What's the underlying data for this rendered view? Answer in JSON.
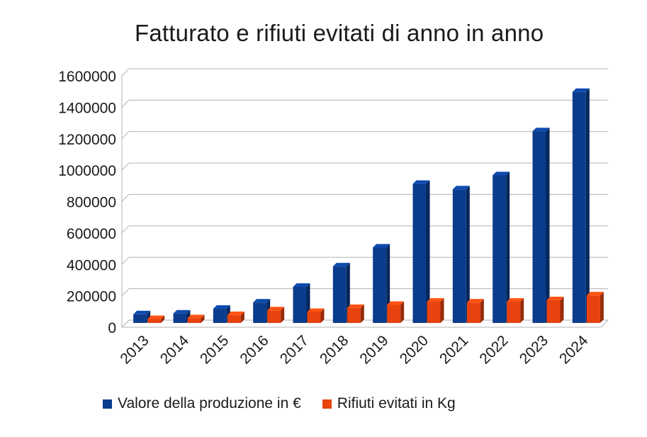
{
  "chart_data": {
    "type": "bar",
    "title": "Fatturato e rifiuti evitati di anno in anno",
    "categories": [
      "2013",
      "2014",
      "2015",
      "2016",
      "2017",
      "2018",
      "2019",
      "2020",
      "2021",
      "2022",
      "2023",
      "2024"
    ],
    "series": [
      {
        "name": "Valore della produzione in €",
        "color": "#0b3c8c",
        "values": [
          55000,
          60000,
          90000,
          130000,
          230000,
          360000,
          480000,
          885000,
          850000,
          940000,
          1220000,
          1470000
        ]
      },
      {
        "name": "Rifiuti evitati in Kg",
        "color": "#e8420f",
        "values": [
          25000,
          30000,
          50000,
          80000,
          70000,
          95000,
          115000,
          135000,
          130000,
          135000,
          145000,
          175000
        ]
      }
    ],
    "ylim": [
      0,
      1600000
    ],
    "yticks": [
      0,
      200000,
      400000,
      600000,
      800000,
      1000000,
      1200000,
      1400000,
      1600000
    ],
    "ytick_labels": [
      "0",
      "200000",
      "400000",
      "600000",
      "800000",
      "1000000",
      "1200000",
      "1400000",
      "1600000"
    ],
    "xlabel": "",
    "ylabel": "",
    "grid": true,
    "legend_position": "bottom",
    "style": "3d-columns"
  }
}
